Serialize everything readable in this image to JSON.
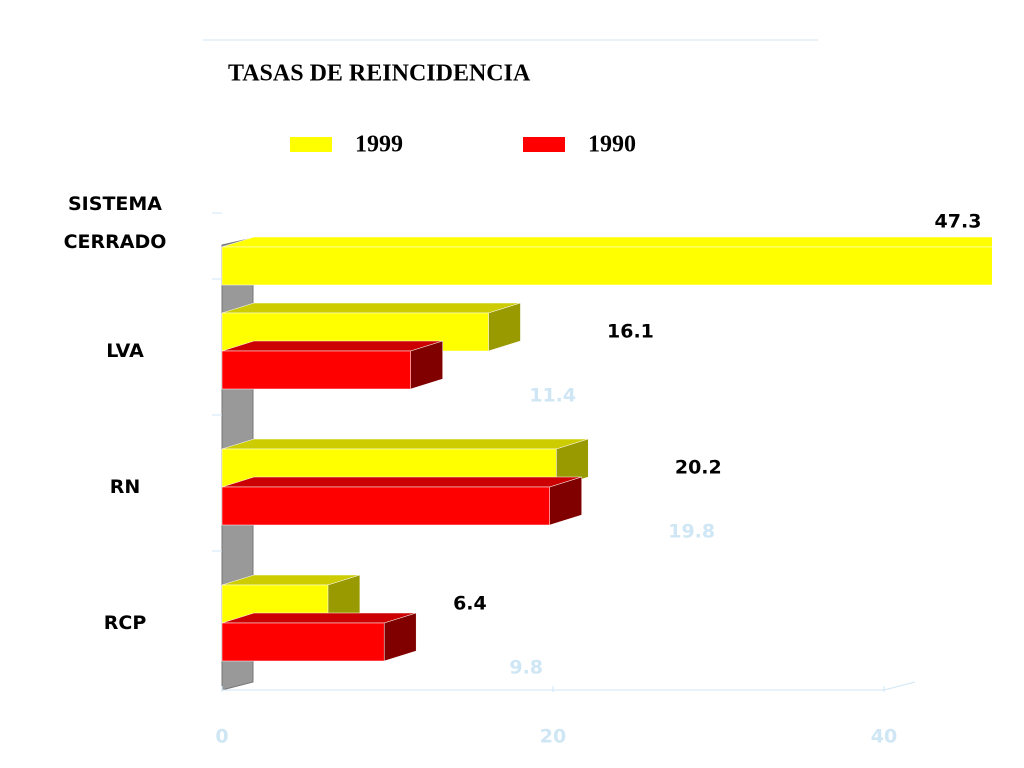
{
  "chart_data": {
    "type": "bar3d_horizontal",
    "title": "TASAS DE REINCIDENCIA",
    "categories": [
      "SISTEMA CERRADO",
      "LVA",
      "RN",
      "RCP"
    ],
    "series": [
      {
        "name": "1999",
        "color": "#ffff00",
        "values": [
          47.3,
          16.1,
          20.2,
          6.4
        ]
      },
      {
        "name": "1990",
        "color": "#ff0000",
        "values": [
          null,
          11.4,
          19.8,
          9.8
        ]
      }
    ],
    "xlim": [
      0,
      40
    ],
    "xticks": [
      0,
      20,
      40
    ]
  }
}
